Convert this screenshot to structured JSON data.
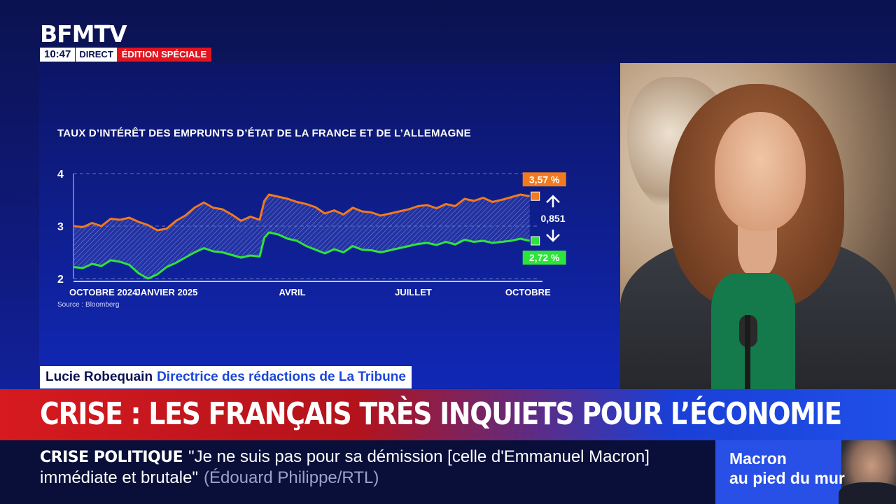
{
  "header": {
    "logo": "BFMTV",
    "time": "10:47",
    "direct": "DIRECT",
    "edition": "ÉDITION SPÉCIALE"
  },
  "chart_data": {
    "type": "line",
    "title": "TAUX D’INTÉRÊT DES EMPRUNTS D’ÉTAT DE LA FRANCE ET DE L’ALLEMAGNE",
    "source": "Source : Bloomberg",
    "ylim": [
      2,
      4
    ],
    "y_ticks": [
      "2",
      "3",
      "4"
    ],
    "x_tick_labels": [
      "OCTOBRE 2024",
      "JANVIER 2025",
      "AVRIL",
      "JUILLET",
      "OCTOBRE"
    ],
    "x_tick_positions": [
      0.0,
      0.2,
      0.47,
      0.73,
      0.98
    ],
    "grid": "dashed-horizontal",
    "series": [
      {
        "color": "#f07a1e",
        "end_label": "3,57 %",
        "points": [
          [
            0.0,
            3.0
          ],
          [
            0.02,
            2.98
          ],
          [
            0.04,
            3.06
          ],
          [
            0.06,
            3.0
          ],
          [
            0.08,
            3.14
          ],
          [
            0.1,
            3.12
          ],
          [
            0.12,
            3.16
          ],
          [
            0.14,
            3.08
          ],
          [
            0.16,
            3.02
          ],
          [
            0.18,
            2.92
          ],
          [
            0.2,
            2.95
          ],
          [
            0.22,
            3.1
          ],
          [
            0.24,
            3.2
          ],
          [
            0.26,
            3.35
          ],
          [
            0.28,
            3.45
          ],
          [
            0.3,
            3.35
          ],
          [
            0.32,
            3.32
          ],
          [
            0.34,
            3.22
          ],
          [
            0.36,
            3.1
          ],
          [
            0.38,
            3.18
          ],
          [
            0.4,
            3.12
          ],
          [
            0.41,
            3.48
          ],
          [
            0.42,
            3.6
          ],
          [
            0.44,
            3.56
          ],
          [
            0.46,
            3.52
          ],
          [
            0.48,
            3.46
          ],
          [
            0.5,
            3.42
          ],
          [
            0.52,
            3.36
          ],
          [
            0.54,
            3.24
          ],
          [
            0.56,
            3.3
          ],
          [
            0.58,
            3.22
          ],
          [
            0.6,
            3.35
          ],
          [
            0.62,
            3.28
          ],
          [
            0.64,
            3.26
          ],
          [
            0.66,
            3.2
          ],
          [
            0.68,
            3.24
          ],
          [
            0.7,
            3.28
          ],
          [
            0.72,
            3.32
          ],
          [
            0.74,
            3.38
          ],
          [
            0.76,
            3.4
          ],
          [
            0.78,
            3.34
          ],
          [
            0.8,
            3.42
          ],
          [
            0.82,
            3.38
          ],
          [
            0.84,
            3.52
          ],
          [
            0.86,
            3.48
          ],
          [
            0.88,
            3.54
          ],
          [
            0.9,
            3.46
          ],
          [
            0.92,
            3.5
          ],
          [
            0.94,
            3.55
          ],
          [
            0.96,
            3.6
          ],
          [
            0.98,
            3.57
          ]
        ]
      },
      {
        "color": "#2ee33a",
        "end_label": "2,72 %",
        "points": [
          [
            0.0,
            2.22
          ],
          [
            0.02,
            2.2
          ],
          [
            0.04,
            2.28
          ],
          [
            0.06,
            2.24
          ],
          [
            0.08,
            2.35
          ],
          [
            0.1,
            2.32
          ],
          [
            0.12,
            2.26
          ],
          [
            0.14,
            2.1
          ],
          [
            0.16,
            2.0
          ],
          [
            0.18,
            2.08
          ],
          [
            0.2,
            2.22
          ],
          [
            0.22,
            2.3
          ],
          [
            0.24,
            2.4
          ],
          [
            0.26,
            2.5
          ],
          [
            0.28,
            2.58
          ],
          [
            0.3,
            2.52
          ],
          [
            0.32,
            2.5
          ],
          [
            0.34,
            2.45
          ],
          [
            0.36,
            2.4
          ],
          [
            0.38,
            2.44
          ],
          [
            0.4,
            2.42
          ],
          [
            0.41,
            2.78
          ],
          [
            0.42,
            2.88
          ],
          [
            0.44,
            2.84
          ],
          [
            0.46,
            2.76
          ],
          [
            0.48,
            2.72
          ],
          [
            0.5,
            2.62
          ],
          [
            0.52,
            2.55
          ],
          [
            0.54,
            2.48
          ],
          [
            0.56,
            2.56
          ],
          [
            0.58,
            2.5
          ],
          [
            0.6,
            2.62
          ],
          [
            0.62,
            2.55
          ],
          [
            0.64,
            2.54
          ],
          [
            0.66,
            2.5
          ],
          [
            0.68,
            2.54
          ],
          [
            0.7,
            2.58
          ],
          [
            0.72,
            2.62
          ],
          [
            0.74,
            2.66
          ],
          [
            0.76,
            2.68
          ],
          [
            0.78,
            2.64
          ],
          [
            0.8,
            2.7
          ],
          [
            0.82,
            2.65
          ],
          [
            0.84,
            2.74
          ],
          [
            0.86,
            2.7
          ],
          [
            0.88,
            2.72
          ],
          [
            0.9,
            2.68
          ],
          [
            0.92,
            2.7
          ],
          [
            0.94,
            2.72
          ],
          [
            0.96,
            2.76
          ],
          [
            0.98,
            2.72
          ]
        ]
      }
    ],
    "spread_label": "0,851"
  },
  "guest": {
    "name": "Lucie Robequain",
    "role": "Directrice des rédactions de La Tribune"
  },
  "headline": "CRISE : LES FRANÇAIS TRÈS INQUIETS POUR L’ÉCONOMIE",
  "ticker": {
    "label": "CRISE POLITIQUE",
    "quote_line1": "\"Je ne suis pas pour sa démission [celle d'Emmanuel Macron]",
    "quote_line2": "immédiate et brutale\"",
    "source": "(Édouard Philippe/RTL)"
  },
  "promo": {
    "line1": "Macron",
    "line2": "au pied du mur"
  }
}
